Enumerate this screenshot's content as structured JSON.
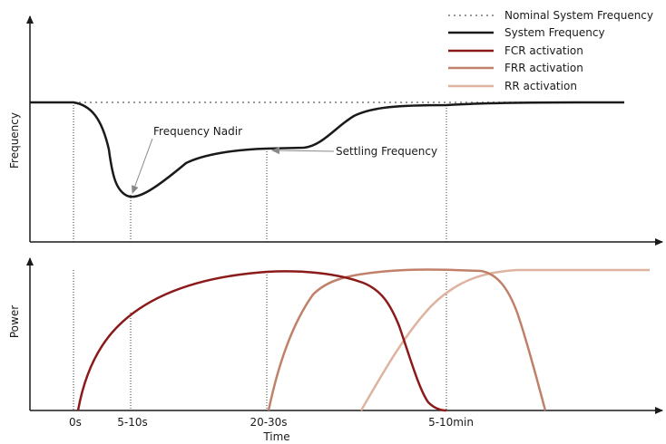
{
  "legend": {
    "items": [
      {
        "label": "Nominal System Frequency",
        "color": "#999999",
        "style": "dotted"
      },
      {
        "label": "System Frequency",
        "color": "#1a1a1a",
        "style": "solid"
      },
      {
        "label": "FCR activation",
        "color": "#8b1a1a",
        "style": "solid"
      },
      {
        "label": "FRR activation",
        "color": "#c0806a",
        "style": "solid"
      },
      {
        "label": "RR activation",
        "color": "#deb3a0",
        "style": "solid"
      }
    ]
  },
  "axes": {
    "top_ylabel": "Frequency",
    "bottom_ylabel": "Power",
    "xlabel": "Time"
  },
  "ticks": [
    "0s",
    "5-10s",
    "20-30s",
    "5-10min"
  ],
  "annotations": {
    "nadir": "Frequency Nadir",
    "settling": "Settling Frequency"
  },
  "colors": {
    "system": "#1a1a1a",
    "nominal": "#999999",
    "fcr": "#8b1a1a",
    "frr": "#c0806a",
    "rr": "#deb3a0",
    "arrow": "#888888"
  }
}
